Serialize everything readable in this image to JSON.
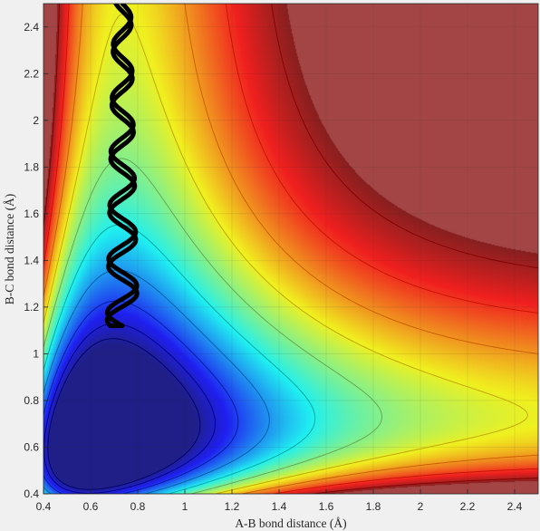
{
  "chart_data": {
    "type": "heatmap",
    "subtype": "filled-contour potential energy surface with trajectory overlay",
    "title": "",
    "xlabel": "A-B bond distance (Å)",
    "ylabel": "B-C bond distance (Å)",
    "xlim": [
      0.4,
      2.5
    ],
    "ylim": [
      0.4,
      2.5
    ],
    "xticks": [
      "0.4",
      "0.6",
      "0.8",
      "1",
      "1.2",
      "1.4",
      "1.6",
      "1.8",
      "2",
      "2.2",
      "2.4"
    ],
    "yticks": [
      "0.4",
      "0.6",
      "0.8",
      "1",
      "1.2",
      "1.4",
      "1.6",
      "1.8",
      "2",
      "2.2",
      "2.4"
    ],
    "grid": true,
    "colormap": "jet",
    "colors": {
      "background": "#f0f0f0",
      "axes_text": "#262626",
      "trajectory": "#000000",
      "contour_line_low": "#000080",
      "contour_line_high": "#c00000",
      "saturated": "#a34646"
    },
    "trajectory": {
      "description_units": "Å",
      "x_range": [
        0.67,
        0.8
      ],
      "y_range": [
        1.12,
        2.5
      ],
      "turning_point": [
        0.78,
        1.12
      ],
      "oscillations": 6
    }
  }
}
